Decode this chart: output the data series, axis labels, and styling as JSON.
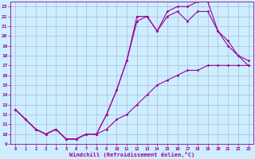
{
  "xlabel": "Windchill (Refroidissement éolien,°C)",
  "bg_color": "#cceeff",
  "line_color": "#990099",
  "grid_color": "#aaaacc",
  "xlim": [
    -0.5,
    23.5
  ],
  "ylim": [
    9,
    23.5
  ],
  "xticks": [
    0,
    1,
    2,
    3,
    4,
    5,
    6,
    7,
    8,
    9,
    10,
    11,
    12,
    13,
    14,
    15,
    16,
    17,
    18,
    19,
    20,
    21,
    22,
    23
  ],
  "yticks": [
    9,
    10,
    11,
    12,
    13,
    14,
    15,
    16,
    17,
    18,
    19,
    20,
    21,
    22,
    23
  ],
  "line1_x": [
    0,
    1,
    2,
    3,
    4,
    5,
    6,
    7,
    8,
    9,
    10,
    11,
    12,
    13,
    14,
    15,
    16,
    17,
    18,
    19,
    20,
    21,
    22,
    23
  ],
  "line1_y": [
    12.5,
    11.5,
    10.5,
    10.0,
    10.5,
    9.5,
    9.5,
    10.0,
    10.0,
    10.5,
    11.5,
    12.0,
    13.0,
    14.0,
    15.0,
    15.5,
    16.0,
    16.5,
    16.5,
    17.0,
    17.0,
    17.0,
    17.0,
    17.0
  ],
  "line2_x": [
    0,
    1,
    2,
    3,
    4,
    5,
    6,
    7,
    8,
    9,
    10,
    11,
    12,
    13,
    14,
    15,
    16,
    17,
    18,
    19,
    20,
    21,
    22,
    23
  ],
  "line2_y": [
    12.5,
    11.5,
    10.5,
    10.0,
    10.5,
    9.5,
    9.5,
    10.0,
    10.0,
    12.0,
    14.5,
    17.5,
    21.5,
    22.0,
    20.5,
    22.0,
    22.5,
    21.5,
    22.5,
    22.5,
    20.5,
    19.5,
    18.0,
    17.5
  ],
  "line3_x": [
    0,
    1,
    2,
    3,
    4,
    5,
    6,
    7,
    8,
    9,
    10,
    11,
    12,
    13,
    14,
    15,
    16,
    17,
    18,
    19,
    20,
    21,
    22,
    23
  ],
  "line3_y": [
    12.5,
    11.5,
    10.5,
    10.0,
    10.5,
    9.5,
    9.5,
    10.0,
    10.0,
    12.0,
    14.5,
    17.5,
    22.0,
    22.0,
    20.5,
    22.5,
    23.0,
    23.0,
    23.5,
    23.5,
    20.5,
    19.0,
    18.0,
    17.0
  ]
}
